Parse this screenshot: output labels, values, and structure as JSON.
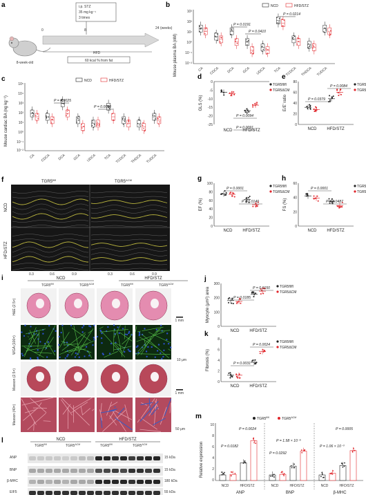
{
  "panels": {
    "a": {
      "letter": "a",
      "box": [
        "i.p. STZ",
        "35 mg kg⁻¹",
        "3 times"
      ],
      "ticks": [
        "0",
        "8",
        "24 (weeks)"
      ],
      "hfd": "HFD",
      "diet": "60 kcal % from fat",
      "mouse": "8-week-old"
    },
    "b": {
      "letter": "b",
      "ylabel": "Mouse plasma BA (nM)",
      "legend": [
        "NCD",
        "HFD/STZ"
      ],
      "pvals": [
        "P = 0.0214",
        "P = 0.0191",
        "P = 0.0410"
      ],
      "cats": [
        "CA",
        "CDCA",
        "DCA",
        "GCA",
        "UDCA",
        "TCA",
        "TCDCA",
        "THDCA",
        "TUDCA"
      ],
      "yticks": [
        "10³",
        "10²",
        "10¹",
        "10⁰",
        "10⁻¹",
        "10⁻²"
      ]
    },
    "c": {
      "letter": "c",
      "ylabel": "Mouse cardiac BA (ng kg⁻¹)",
      "legend": [
        "NCD",
        "HFD/STZ"
      ],
      "pvals": [
        "P = 0.0025",
        "P = 0.0010"
      ],
      "cats": [
        "CA",
        "CDCA",
        "DCA",
        "GCA",
        "UDCA",
        "TCA",
        "TCDCA",
        "THDCA",
        "TUDCA"
      ],
      "yticks": [
        "10⁵",
        "10⁴",
        "10³",
        "10²",
        "10¹",
        "10⁰",
        "10⁻¹",
        "10⁻²"
      ]
    },
    "d": {
      "letter": "d",
      "ylabel": "GLS (%)",
      "pvals": [
        "P = 0.0094",
        "P = 0.0091"
      ],
      "cats": [
        "NCD",
        "HFD/STZ"
      ],
      "yticks": [
        "0",
        "-5",
        "-10",
        "-15",
        "-20",
        "-25"
      ]
    },
    "e": {
      "letter": "e",
      "ylabel": "E/E’ ratio",
      "pvals": [
        "P = 0.0084",
        "P = 0.0379"
      ],
      "cats": [
        "NCD",
        "HFD/STZ"
      ],
      "yticks": [
        "80",
        "60",
        "40",
        "20",
        "0"
      ]
    },
    "f": {
      "letter": "f",
      "rows": [
        "NCD",
        "HFD/STZ"
      ],
      "xticks": [
        "0.3",
        "0.6",
        "0.9",
        "0.3",
        "0.6",
        "0.9"
      ]
    },
    "g": {
      "letter": "g",
      "ylabel": "EF (%)",
      "pvals": [
        "P = 0.0001",
        "P = 0.0140"
      ],
      "cats": [
        "NCD",
        "HFD/STZ"
      ],
      "yticks": [
        "100",
        "80",
        "60",
        "40",
        "20",
        "0"
      ]
    },
    "h": {
      "letter": "h",
      "ylabel": "FS (%)",
      "pvals": [
        "P = 0.0001",
        "P = 0.0487"
      ],
      "cats": [
        "NCD",
        "HFD/STZ"
      ],
      "yticks": [
        "60",
        "40",
        "20",
        "0"
      ]
    },
    "i": {
      "letter": "i",
      "groups": [
        "NCD",
        "HFD/STZ"
      ],
      "rows": [
        "H&E (2.5×)",
        "WGA (100×)",
        "Masson (2.5×)",
        "Masson (40×)"
      ],
      "scales": [
        "1 mm",
        "10 μm",
        "1 mm",
        "50 μm"
      ]
    },
    "j": {
      "letter": "j",
      "ylabel": "Myocyte (μm²) area",
      "pvals": [
        "P = 0.0150",
        "P = 0.0185"
      ],
      "cats": [
        "NCD",
        "HFD/STZ"
      ],
      "yticks": [
        "300",
        "200",
        "100",
        "0"
      ]
    },
    "k": {
      "letter": "k",
      "ylabel": "Fibrosis (%)",
      "pvals": [
        "P = 0.0024",
        "P = 0.0031"
      ],
      "cats": [
        "NCD",
        "HFD/STZ"
      ],
      "yticks": [
        "8",
        "6",
        "4",
        "2",
        "0"
      ]
    },
    "l": {
      "letter": "l",
      "groups": [
        "NCD",
        "HFD/STZ"
      ],
      "proteins": [
        "ANP",
        "BNP",
        "β-MHC",
        "EIF5"
      ],
      "kda": [
        "15 kDa",
        "15 kDa",
        "180 kDa",
        "55 kDa"
      ]
    },
    "m": {
      "letter": "m",
      "ylabel": "Relative expression",
      "pvals": [
        "P = 0.0024",
        "P = 0.0182",
        "P = 1.58 × 10⁻⁵",
        "P = 0.0292",
        "P = 0.0005",
        "P = 1.06 × 10⁻³"
      ],
      "cats": [
        "NCD",
        "HFD/STZ",
        "NCD",
        "HFD/STZ",
        "NCD",
        "HFD/STZ"
      ],
      "genes": [
        "ANP",
        "BNP",
        "β-MHC"
      ],
      "yticks": [
        "10",
        "8",
        "6",
        "4",
        "2",
        "0"
      ]
    }
  },
  "legend_tgr": {
    "fl": "TGR5",
    "fl_sup": "fl/fl",
    "cm": "TGR5",
    "cm_sup": "ΔCM"
  },
  "colors": {
    "ncd": "#222222",
    "hfd": "#e0262b",
    "red": "#e0262b",
    "he": "#e48cb0",
    "masson": "#b8485a"
  }
}
